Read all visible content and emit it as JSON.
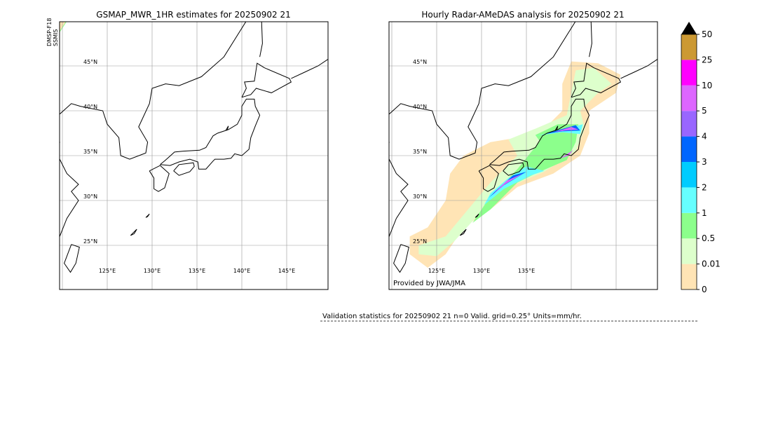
{
  "left_map": {
    "title": "GSMAP_MWR_1HR estimates for 20250902 21",
    "side_label": [
      "DMSP-F18",
      "SSMIS"
    ],
    "lat_labels": [
      "45°N",
      "40°N",
      "35°N",
      "30°N",
      "25°N"
    ],
    "lon_labels": [
      "125°E",
      "130°E",
      "135°E",
      "140°E",
      "145°E"
    ]
  },
  "right_map": {
    "title": "Hourly Radar-AMeDAS analysis for 20250902 21",
    "lat_labels": [
      "45°N",
      "40°N",
      "35°N",
      "30°N",
      "25°N"
    ],
    "lon_labels": [
      "125°E",
      "130°E",
      "135°E"
    ],
    "credit": "Provided by JWA/JMA"
  },
  "colorbar": {
    "labels": [
      "0",
      "0.01",
      "0.5",
      "1",
      "2",
      "3",
      "4",
      "5",
      "10",
      "25",
      "50"
    ],
    "colors": [
      "#ffe4b5",
      "#ddffcc",
      "#8cff8c",
      "#66ffff",
      "#00ccff",
      "#0066ff",
      "#9966ff",
      "#dd66ff",
      "#ff00ff",
      "#cc9933"
    ]
  },
  "validation": "Validation statistics for 20250902 21  n=0 Valid. grid=0.25° Units=mm/hr."
}
